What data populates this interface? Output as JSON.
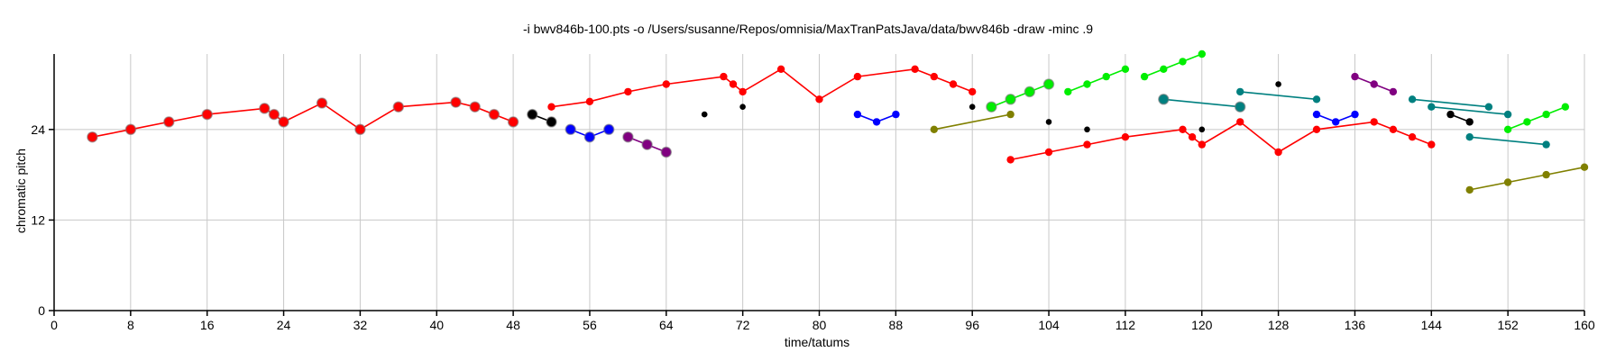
{
  "chart_data": {
    "type": "scatter",
    "title": "-i bwv846b-100.pts -o /Users/susanne/Repos/omnisia/MaxTranPatsJava/data/bwv846b -draw -minc .9",
    "xlabel": "time/tatums",
    "ylabel": "chromatic pitch",
    "xlim": [
      0,
      160
    ],
    "ylim": [
      0,
      34
    ],
    "xticks": [
      0,
      8,
      16,
      24,
      32,
      40,
      48,
      56,
      64,
      72,
      80,
      88,
      96,
      104,
      112,
      120,
      128,
      136,
      144,
      152,
      160
    ],
    "yticks": [
      0,
      12,
      24
    ],
    "grid": true,
    "legend": "none",
    "series": [
      {
        "color": "#ff0000",
        "size": "large",
        "points": [
          [
            4,
            23
          ],
          [
            8,
            24
          ],
          [
            12,
            25
          ],
          [
            16,
            26
          ],
          [
            22,
            26.8
          ],
          [
            23,
            26
          ],
          [
            24,
            25
          ],
          [
            28,
            27.5
          ],
          [
            32,
            24
          ],
          [
            36,
            27
          ],
          [
            42,
            27.6
          ],
          [
            44,
            27
          ],
          [
            46,
            26
          ],
          [
            48,
            25
          ]
        ]
      },
      {
        "color": "#ff0000",
        "size": "small",
        "points": [
          [
            52,
            27
          ],
          [
            56,
            27.7
          ],
          [
            60,
            29
          ],
          [
            64,
            30
          ],
          [
            70,
            31
          ],
          [
            71,
            30
          ],
          [
            72,
            29
          ],
          [
            76,
            32
          ],
          [
            80,
            28
          ],
          [
            84,
            31
          ],
          [
            90,
            32
          ],
          [
            92,
            31
          ],
          [
            94,
            30
          ],
          [
            96,
            29
          ]
        ]
      },
      {
        "color": "#ff0000",
        "size": "small",
        "points": [
          [
            100,
            20
          ],
          [
            104,
            21
          ],
          [
            108,
            22
          ],
          [
            112,
            23
          ],
          [
            118,
            24
          ],
          [
            119,
            23
          ],
          [
            120,
            22
          ],
          [
            124,
            25
          ],
          [
            128,
            21
          ],
          [
            132,
            24
          ],
          [
            138,
            25
          ],
          [
            140,
            24
          ],
          [
            142,
            23
          ],
          [
            144,
            22
          ]
        ]
      },
      {
        "color": "#000000",
        "size": "large",
        "points": [
          [
            50,
            26
          ],
          [
            52,
            25
          ]
        ]
      },
      {
        "color": "#0000ff",
        "size": "large",
        "points": [
          [
            54,
            24
          ],
          [
            56,
            23
          ],
          [
            58,
            24
          ]
        ]
      },
      {
        "color": "#800080",
        "size": "large",
        "points": [
          [
            60,
            23
          ],
          [
            62,
            22
          ],
          [
            64,
            21
          ]
        ]
      },
      {
        "color": "#0000ff",
        "size": "small",
        "points": [
          [
            84,
            26
          ],
          [
            86,
            25
          ],
          [
            88,
            26
          ]
        ]
      },
      {
        "color": "#808000",
        "size": "small",
        "points": [
          [
            92,
            24
          ],
          [
            100,
            26
          ]
        ]
      },
      {
        "color": "#00ee00",
        "size": "large",
        "points": [
          [
            98,
            27
          ],
          [
            100,
            28
          ],
          [
            102,
            29
          ],
          [
            104,
            30
          ]
        ]
      },
      {
        "color": "#00ee00",
        "size": "small",
        "points": [
          [
            106,
            29
          ],
          [
            108,
            30
          ],
          [
            110,
            31
          ],
          [
            112,
            32
          ]
        ]
      },
      {
        "color": "#00ee00",
        "size": "small",
        "points": [
          [
            114,
            31
          ],
          [
            116,
            32
          ],
          [
            118,
            33
          ],
          [
            120,
            34
          ]
        ]
      },
      {
        "color": "#008080",
        "size": "large",
        "points": [
          [
            116,
            28
          ],
          [
            124,
            27
          ]
        ]
      },
      {
        "color": "#008080",
        "size": "small",
        "points": [
          [
            124,
            29
          ],
          [
            132,
            28
          ]
        ]
      },
      {
        "color": "#0000ff",
        "size": "small",
        "points": [
          [
            132,
            26
          ],
          [
            134,
            25
          ],
          [
            136,
            26
          ]
        ]
      },
      {
        "color": "#800080",
        "size": "small",
        "points": [
          [
            136,
            31
          ],
          [
            138,
            30
          ],
          [
            140,
            29
          ]
        ]
      },
      {
        "color": "#008080",
        "size": "small",
        "points": [
          [
            142,
            28
          ],
          [
            150,
            27
          ]
        ]
      },
      {
        "color": "#008080",
        "size": "small",
        "points": [
          [
            144,
            27
          ],
          [
            152,
            26
          ]
        ]
      },
      {
        "color": "#000000",
        "size": "small",
        "points": [
          [
            146,
            26
          ],
          [
            148,
            25
          ]
        ]
      },
      {
        "color": "#008080",
        "size": "small",
        "points": [
          [
            148,
            23
          ],
          [
            156,
            22
          ]
        ]
      },
      {
        "color": "#00ee00",
        "size": "small",
        "points": [
          [
            152,
            24
          ],
          [
            154,
            25
          ],
          [
            156,
            26
          ],
          [
            158,
            27
          ]
        ]
      },
      {
        "color": "#808000",
        "size": "small",
        "points": [
          [
            148,
            16
          ],
          [
            152,
            17
          ],
          [
            156,
            18
          ],
          [
            160,
            19
          ]
        ]
      },
      {
        "color": "#000000",
        "size": "dot",
        "points": [
          [
            68,
            26
          ]
        ]
      },
      {
        "color": "#000000",
        "size": "dot",
        "points": [
          [
            72,
            27
          ]
        ]
      },
      {
        "color": "#000000",
        "size": "dot",
        "points": [
          [
            96,
            27
          ]
        ]
      },
      {
        "color": "#000000",
        "size": "dot",
        "points": [
          [
            104,
            25
          ]
        ]
      },
      {
        "color": "#000000",
        "size": "dot",
        "points": [
          [
            108,
            24
          ]
        ]
      },
      {
        "color": "#000000",
        "size": "dot",
        "points": [
          [
            120,
            24
          ]
        ]
      },
      {
        "color": "#000000",
        "size": "dot",
        "points": [
          [
            128,
            30
          ]
        ]
      }
    ]
  }
}
